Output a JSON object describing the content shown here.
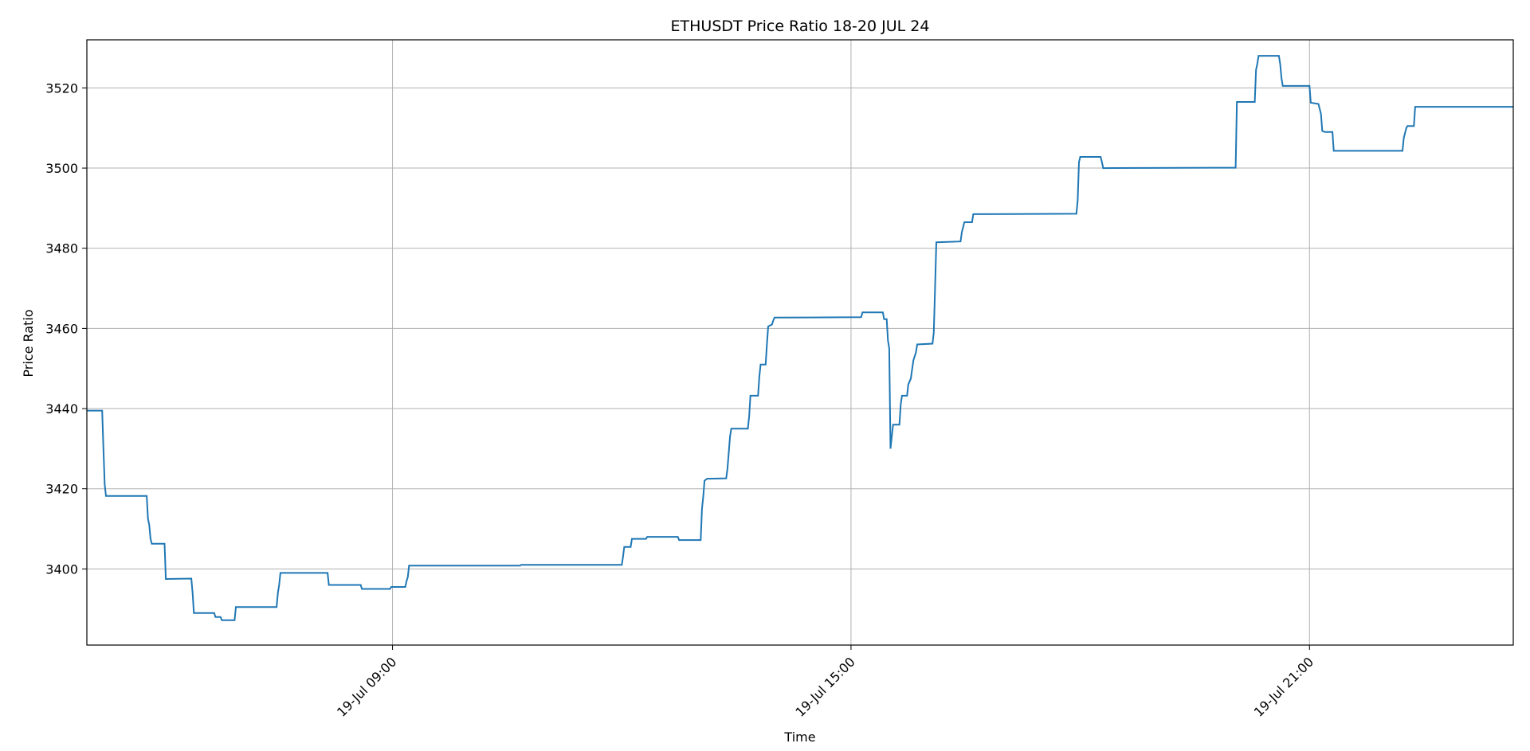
{
  "chart_data": {
    "type": "line",
    "title": "ETHUSDT Price Ratio 18-20 JUL 24",
    "xlabel": "Time",
    "ylabel": "Price Ratio",
    "grid": true,
    "xlim": [
      "2024-07-19T05:00",
      "2024-07-19T23:40"
    ],
    "ylim": [
      3381,
      3532
    ],
    "x_ticks": [
      {
        "t": "2024-07-19T09:00",
        "label": "19-Jul 09:00"
      },
      {
        "t": "2024-07-19T15:00",
        "label": "19-Jul 15:00"
      },
      {
        "t": "2024-07-19T21:00",
        "label": "19-Jul 21:00"
      }
    ],
    "y_ticks": [
      3400,
      3420,
      3440,
      3460,
      3480,
      3500,
      3520
    ],
    "series": [
      {
        "color": "#1f77b4",
        "points": [
          [
            "2024-07-19T05:00",
            3439.5
          ],
          [
            "2024-07-19T05:12",
            3439.5
          ],
          [
            "2024-07-19T05:13",
            3430
          ],
          [
            "2024-07-19T05:14",
            3421
          ],
          [
            "2024-07-19T05:15",
            3418.2
          ],
          [
            "2024-07-19T05:47",
            3418.2
          ],
          [
            "2024-07-19T05:48",
            3412.5
          ],
          [
            "2024-07-19T05:49",
            3411
          ],
          [
            "2024-07-19T05:50",
            3407.5
          ],
          [
            "2024-07-19T05:51",
            3406.3
          ],
          [
            "2024-07-19T06:01",
            3406.3
          ],
          [
            "2024-07-19T06:02",
            3397.5
          ],
          [
            "2024-07-19T06:22",
            3397.6
          ],
          [
            "2024-07-19T06:23",
            3394
          ],
          [
            "2024-07-19T06:24",
            3389
          ],
          [
            "2024-07-19T06:40",
            3389
          ],
          [
            "2024-07-19T06:41",
            3388
          ],
          [
            "2024-07-19T06:45",
            3388
          ],
          [
            "2024-07-19T06:46",
            3387.2
          ],
          [
            "2024-07-19T06:56",
            3387.2
          ],
          [
            "2024-07-19T06:57",
            3390.5
          ],
          [
            "2024-07-19T07:29",
            3390.5
          ],
          [
            "2024-07-19T07:30",
            3394
          ],
          [
            "2024-07-19T07:31",
            3396
          ],
          [
            "2024-07-19T07:32",
            3399
          ],
          [
            "2024-07-19T08:09",
            3399
          ],
          [
            "2024-07-19T08:10",
            3396
          ],
          [
            "2024-07-19T08:35",
            3396
          ],
          [
            "2024-07-19T08:36",
            3395
          ],
          [
            "2024-07-19T08:58",
            3395
          ],
          [
            "2024-07-19T08:59",
            3395.5
          ],
          [
            "2024-07-19T09:10",
            3395.5
          ],
          [
            "2024-07-19T09:11",
            3397
          ],
          [
            "2024-07-19T09:12",
            3398
          ],
          [
            "2024-07-19T09:13",
            3400.8
          ],
          [
            "2024-07-19T10:40",
            3400.8
          ],
          [
            "2024-07-19T10:41",
            3401
          ],
          [
            "2024-07-19T12:00",
            3401
          ],
          [
            "2024-07-19T12:01",
            3403
          ],
          [
            "2024-07-19T12:02",
            3405.5
          ],
          [
            "2024-07-19T12:07",
            3405.5
          ],
          [
            "2024-07-19T12:08",
            3407.5
          ],
          [
            "2024-07-19T12:19",
            3407.5
          ],
          [
            "2024-07-19T12:20",
            3408
          ],
          [
            "2024-07-19T12:44",
            3408
          ],
          [
            "2024-07-19T12:45",
            3407.2
          ],
          [
            "2024-07-19T13:02",
            3407.2
          ],
          [
            "2024-07-19T13:03",
            3415
          ],
          [
            "2024-07-19T13:04",
            3418
          ],
          [
            "2024-07-19T13:05",
            3422
          ],
          [
            "2024-07-19T13:07",
            3422.5
          ],
          [
            "2024-07-19T13:22",
            3422.6
          ],
          [
            "2024-07-19T13:23",
            3425
          ],
          [
            "2024-07-19T13:24",
            3429
          ],
          [
            "2024-07-19T13:25",
            3433
          ],
          [
            "2024-07-19T13:26",
            3435
          ],
          [
            "2024-07-19T13:39",
            3435
          ],
          [
            "2024-07-19T13:40",
            3438
          ],
          [
            "2024-07-19T13:41",
            3443.2
          ],
          [
            "2024-07-19T13:47",
            3443.2
          ],
          [
            "2024-07-19T13:48",
            3448
          ],
          [
            "2024-07-19T13:49",
            3451
          ],
          [
            "2024-07-19T13:53",
            3451
          ],
          [
            "2024-07-19T13:54",
            3456
          ],
          [
            "2024-07-19T13:55",
            3460.5
          ],
          [
            "2024-07-19T13:58",
            3461
          ],
          [
            "2024-07-19T13:59",
            3462
          ],
          [
            "2024-07-19T14:00",
            3462.7
          ],
          [
            "2024-07-19T15:08",
            3462.8
          ],
          [
            "2024-07-19T15:09",
            3464
          ],
          [
            "2024-07-19T15:25",
            3464
          ],
          [
            "2024-07-19T15:26",
            3462.3
          ],
          [
            "2024-07-19T15:28",
            3462.3
          ],
          [
            "2024-07-19T15:29",
            3457
          ],
          [
            "2024-07-19T15:30",
            3455
          ],
          [
            "2024-07-19T15:31",
            3430
          ],
          [
            "2024-07-19T15:32",
            3433
          ],
          [
            "2024-07-19T15:33",
            3436
          ],
          [
            "2024-07-19T15:38",
            3436
          ],
          [
            "2024-07-19T15:39",
            3441
          ],
          [
            "2024-07-19T15:40",
            3443.2
          ],
          [
            "2024-07-19T15:44",
            3443.2
          ],
          [
            "2024-07-19T15:45",
            3446
          ],
          [
            "2024-07-19T15:47",
            3447.5
          ],
          [
            "2024-07-19T15:49",
            3452
          ],
          [
            "2024-07-19T15:51",
            3454
          ],
          [
            "2024-07-19T15:52",
            3456
          ],
          [
            "2024-07-19T16:04",
            3456.2
          ],
          [
            "2024-07-19T16:05",
            3459
          ],
          [
            "2024-07-19T16:06",
            3470
          ],
          [
            "2024-07-19T16:07",
            3481.5
          ],
          [
            "2024-07-19T16:26",
            3481.7
          ],
          [
            "2024-07-19T16:27",
            3484
          ],
          [
            "2024-07-19T16:29",
            3486.5
          ],
          [
            "2024-07-19T16:35",
            3486.5
          ],
          [
            "2024-07-19T16:36",
            3488.5
          ],
          [
            "2024-07-19T17:57",
            3488.6
          ],
          [
            "2024-07-19T17:58",
            3492
          ],
          [
            "2024-07-19T17:59",
            3501.5
          ],
          [
            "2024-07-19T18:00",
            3502.8
          ],
          [
            "2024-07-19T18:16",
            3502.8
          ],
          [
            "2024-07-19T18:17",
            3501.5
          ],
          [
            "2024-07-19T18:18",
            3500
          ],
          [
            "2024-07-19T20:02",
            3500.1
          ],
          [
            "2024-07-19T20:03",
            3516.5
          ],
          [
            "2024-07-19T20:17",
            3516.5
          ],
          [
            "2024-07-19T20:18",
            3524.5
          ],
          [
            "2024-07-19T20:19",
            3526
          ],
          [
            "2024-07-19T20:20",
            3528
          ],
          [
            "2024-07-19T20:36",
            3528
          ],
          [
            "2024-07-19T20:37",
            3526
          ],
          [
            "2024-07-19T20:38",
            3522.5
          ],
          [
            "2024-07-19T20:39",
            3520.5
          ],
          [
            "2024-07-19T21:00",
            3520.5
          ],
          [
            "2024-07-19T21:01",
            3516.3
          ],
          [
            "2024-07-19T21:07",
            3516
          ],
          [
            "2024-07-19T21:09",
            3513.5
          ],
          [
            "2024-07-19T21:10",
            3509.3
          ],
          [
            "2024-07-19T21:12",
            3509
          ],
          [
            "2024-07-19T21:18",
            3509
          ],
          [
            "2024-07-19T21:19",
            3504.3
          ],
          [
            "2024-07-19T22:13",
            3504.3
          ],
          [
            "2024-07-19T22:14",
            3507.5
          ],
          [
            "2024-07-19T22:16",
            3510
          ],
          [
            "2024-07-19T22:17",
            3510.5
          ],
          [
            "2024-07-19T22:22",
            3510.5
          ],
          [
            "2024-07-19T22:23",
            3515.3
          ],
          [
            "2024-07-19T23:40",
            3515.3
          ]
        ]
      }
    ]
  }
}
